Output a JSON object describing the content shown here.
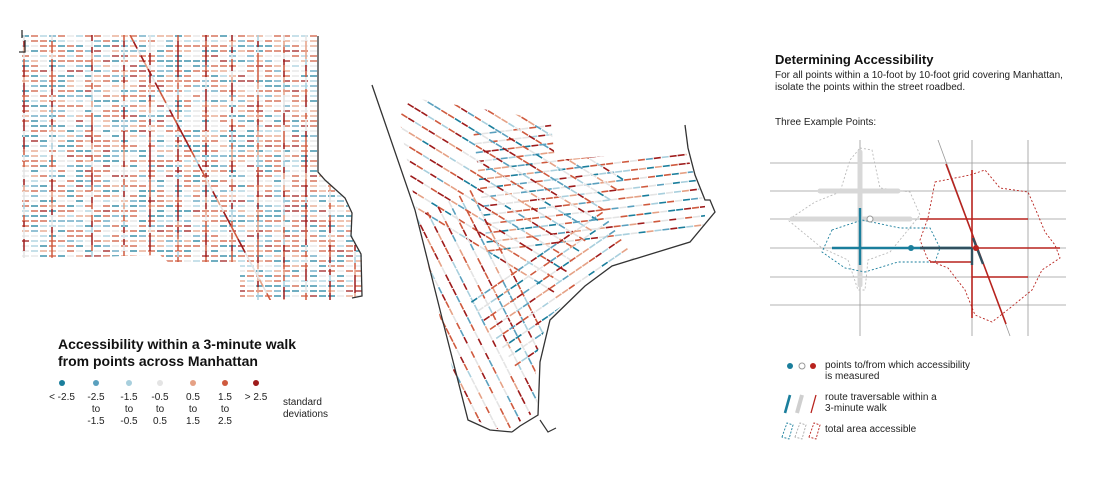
{
  "legend": {
    "title_line1": "Accessibility within a 3-minute walk",
    "title_line2": "from points across Manhattan",
    "scale": [
      {
        "lines": [
          "< -2.5"
        ],
        "color": "#1a7e9c"
      },
      {
        "lines": [
          "-2.5",
          "to",
          "-1.5"
        ],
        "color": "#5aa0be"
      },
      {
        "lines": [
          "-1.5",
          "to",
          "-0.5"
        ],
        "color": "#a8cfdd"
      },
      {
        "lines": [
          "-0.5",
          "to",
          "0.5"
        ],
        "color": "#e4e4e4"
      },
      {
        "lines": [
          "0.5",
          "to",
          "1.5"
        ],
        "color": "#e5a185"
      },
      {
        "lines": [
          "1.5",
          "to",
          "2.5"
        ],
        "color": "#cf5a3e"
      },
      {
        "lines": [
          "> 2.5"
        ],
        "color": "#9e1b1b"
      }
    ],
    "units_line1": "standard",
    "units_line2": "deviations"
  },
  "determining": {
    "title": "Determining Accessibility",
    "subtitle_line1": "For all points within a 10-foot by 10-foot grid covering Manhattan,",
    "subtitle_line2": "isolate the points within the street roadbed.",
    "examples_label": "Three Example Points:"
  },
  "key": {
    "points_line1": "points to/from which accessibility",
    "points_line2": "is measured",
    "route_line1": "route traversable within a",
    "route_line2": "3-minute walk",
    "area": "total area accessible"
  },
  "colors": {
    "blue": "#1a7e9c",
    "grey": "#c8c8c8",
    "red": "#b8231e",
    "road_grey": "#d8d8d8",
    "gridline": "#9a9a9a",
    "coast": "#333333"
  }
}
